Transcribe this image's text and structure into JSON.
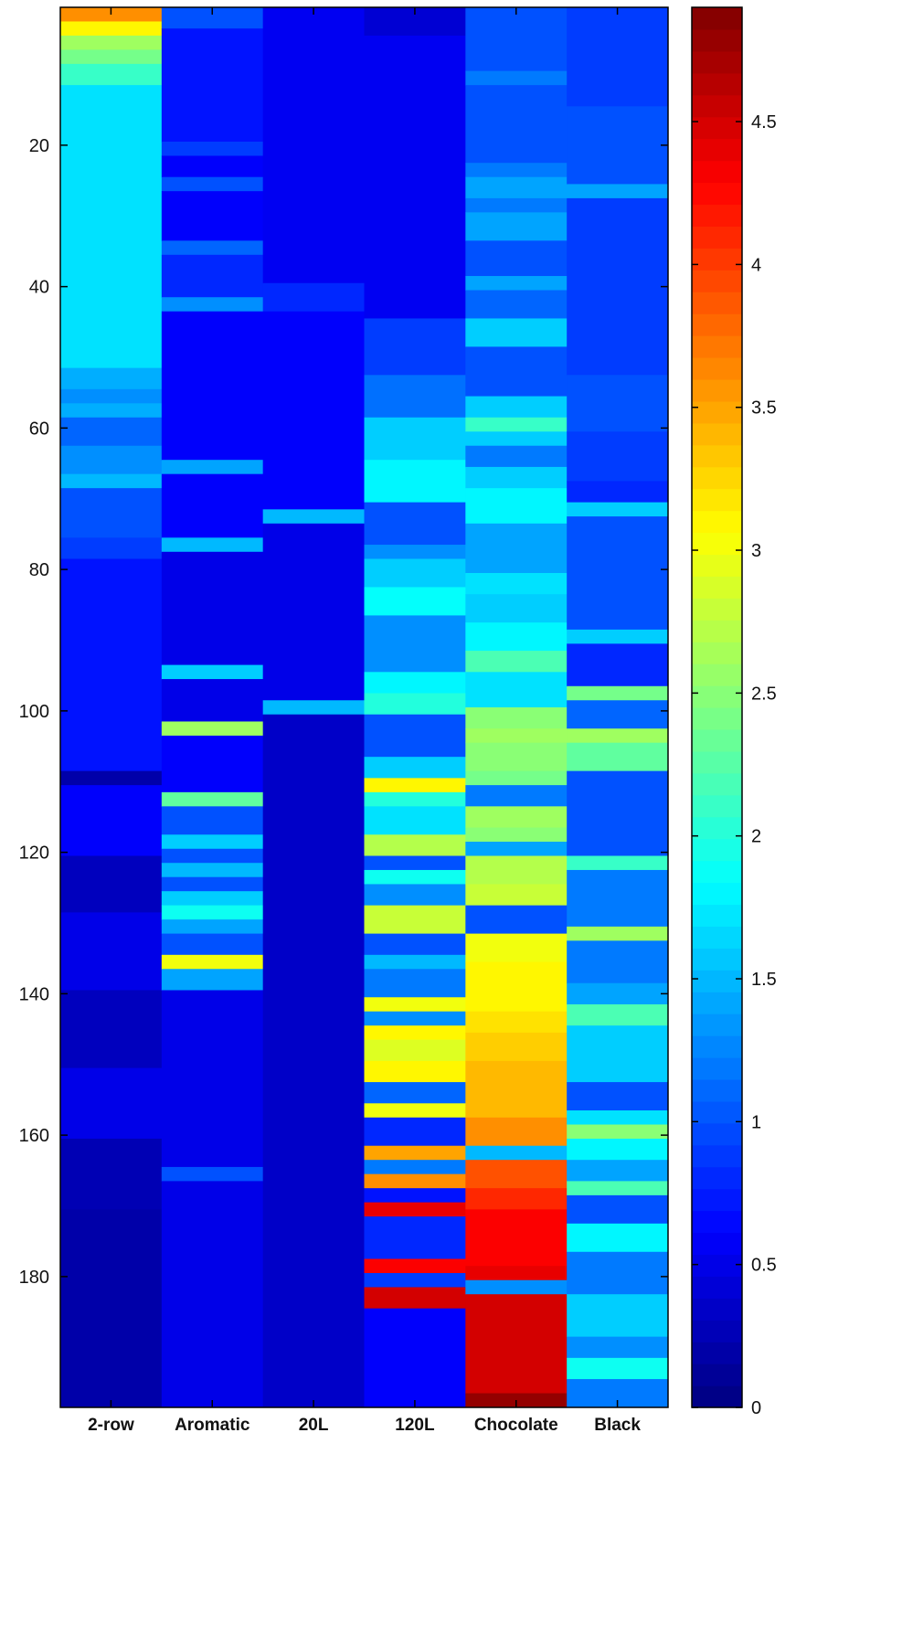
{
  "chart_data": {
    "type": "heatmap",
    "title": "",
    "xlabel": "",
    "ylabel": "",
    "columns": [
      "2-row",
      "Aromatic",
      "20L",
      "120L",
      "Chocolate",
      "Black"
    ],
    "yticks": [
      20,
      40,
      60,
      80,
      100,
      120,
      140,
      160,
      180
    ],
    "ylim": [
      0.5,
      198.5
    ],
    "rows": 198,
    "colorbar": {
      "ticks": [
        0,
        0.5,
        1,
        1.5,
        2,
        2.5,
        3,
        3.5,
        4,
        4.5
      ],
      "tick_labels": [
        "0",
        "0.5",
        "1",
        "1.5",
        "2",
        "2.5",
        "3",
        "3.5",
        "4",
        "4.5"
      ],
      "range": [
        0,
        4.9
      ],
      "colormap": "jet"
    },
    "series": [
      {
        "name": "2-row",
        "segments": [
          [
            1,
            2,
            3.6
          ],
          [
            3,
            4,
            3.1
          ],
          [
            5,
            6,
            2.6
          ],
          [
            7,
            8,
            2.4
          ],
          [
            9,
            11,
            2.1
          ],
          [
            12,
            51,
            1.7
          ],
          [
            52,
            54,
            1.45
          ],
          [
            55,
            56,
            1.3
          ],
          [
            57,
            58,
            1.45
          ],
          [
            59,
            62,
            1.1
          ],
          [
            63,
            66,
            1.3
          ],
          [
            67,
            68,
            1.5
          ],
          [
            69,
            75,
            1.0
          ],
          [
            76,
            78,
            0.9
          ],
          [
            79,
            108,
            0.7
          ],
          [
            109,
            110,
            0.2
          ],
          [
            111,
            120,
            0.6
          ],
          [
            121,
            128,
            0.3
          ],
          [
            129,
            139,
            0.5
          ],
          [
            140,
            150,
            0.3
          ],
          [
            151,
            160,
            0.5
          ],
          [
            161,
            170,
            0.25
          ],
          [
            171,
            198,
            0.2
          ]
        ]
      },
      {
        "name": "Aromatic",
        "segments": [
          [
            1,
            3,
            1.0
          ],
          [
            4,
            19,
            0.7
          ],
          [
            20,
            21,
            0.9
          ],
          [
            22,
            24,
            0.6
          ],
          [
            25,
            26,
            1.0
          ],
          [
            27,
            33,
            0.6
          ],
          [
            34,
            35,
            1.1
          ],
          [
            36,
            41,
            0.8
          ],
          [
            42,
            43,
            1.3
          ],
          [
            44,
            64,
            0.6
          ],
          [
            65,
            66,
            1.4
          ],
          [
            67,
            75,
            0.6
          ],
          [
            76,
            77,
            1.5
          ],
          [
            78,
            93,
            0.5
          ],
          [
            94,
            95,
            1.6
          ],
          [
            96,
            101,
            0.5
          ],
          [
            102,
            103,
            2.6
          ],
          [
            104,
            111,
            0.6
          ],
          [
            112,
            113,
            2.3
          ],
          [
            114,
            117,
            1.0
          ],
          [
            118,
            119,
            1.6
          ],
          [
            120,
            121,
            1.0
          ],
          [
            122,
            123,
            1.5
          ],
          [
            124,
            125,
            1.0
          ],
          [
            126,
            127,
            1.6
          ],
          [
            128,
            129,
            1.9
          ],
          [
            130,
            131,
            1.4
          ],
          [
            132,
            134,
            1.0
          ],
          [
            135,
            136,
            3.0
          ],
          [
            137,
            139,
            1.4
          ],
          [
            140,
            164,
            0.5
          ],
          [
            165,
            166,
            1.0
          ],
          [
            167,
            198,
            0.5
          ]
        ]
      },
      {
        "name": "20L",
        "segments": [
          [
            1,
            39,
            0.55
          ],
          [
            40,
            43,
            0.8
          ],
          [
            44,
            71,
            0.6
          ],
          [
            72,
            73,
            1.5
          ],
          [
            74,
            98,
            0.5
          ],
          [
            99,
            100,
            1.5
          ],
          [
            101,
            198,
            0.35
          ]
        ]
      },
      {
        "name": "120L",
        "segments": [
          [
            1,
            4,
            0.4
          ],
          [
            5,
            44,
            0.55
          ],
          [
            45,
            52,
            0.9
          ],
          [
            53,
            58,
            1.15
          ],
          [
            59,
            64,
            1.6
          ],
          [
            65,
            70,
            1.8
          ],
          [
            71,
            76,
            1.0
          ],
          [
            77,
            78,
            1.3
          ],
          [
            79,
            82,
            1.6
          ],
          [
            83,
            86,
            1.85
          ],
          [
            87,
            94,
            1.3
          ],
          [
            95,
            97,
            1.8
          ],
          [
            98,
            100,
            2.0
          ],
          [
            101,
            106,
            1.0
          ],
          [
            107,
            109,
            1.6
          ],
          [
            110,
            111,
            3.1
          ],
          [
            112,
            113,
            2.0
          ],
          [
            114,
            117,
            1.7
          ],
          [
            118,
            120,
            2.7
          ],
          [
            121,
            122,
            1.0
          ],
          [
            123,
            124,
            1.9
          ],
          [
            125,
            127,
            1.3
          ],
          [
            128,
            131,
            2.8
          ],
          [
            132,
            134,
            1.0
          ],
          [
            135,
            136,
            1.5
          ],
          [
            137,
            140,
            1.2
          ],
          [
            141,
            142,
            3.0
          ],
          [
            143,
            144,
            1.3
          ],
          [
            145,
            146,
            3.1
          ],
          [
            147,
            149,
            2.9
          ],
          [
            150,
            152,
            3.1
          ],
          [
            153,
            155,
            1.1
          ],
          [
            156,
            157,
            3.0
          ],
          [
            158,
            161,
            0.8
          ],
          [
            162,
            163,
            3.5
          ],
          [
            164,
            165,
            1.2
          ],
          [
            166,
            167,
            3.6
          ],
          [
            168,
            169,
            0.7
          ],
          [
            170,
            171,
            4.4
          ],
          [
            172,
            177,
            0.8
          ],
          [
            178,
            179,
            4.3
          ],
          [
            180,
            181,
            0.9
          ],
          [
            182,
            184,
            4.5
          ],
          [
            185,
            198,
            0.6
          ]
        ]
      },
      {
        "name": "Chocolate",
        "segments": [
          [
            1,
            9,
            1.0
          ],
          [
            10,
            11,
            1.2
          ],
          [
            12,
            22,
            1.0
          ],
          [
            23,
            24,
            1.2
          ],
          [
            25,
            27,
            1.4
          ],
          [
            28,
            29,
            1.2
          ],
          [
            30,
            33,
            1.4
          ],
          [
            34,
            38,
            1.0
          ],
          [
            39,
            40,
            1.4
          ],
          [
            41,
            44,
            1.1
          ],
          [
            45,
            48,
            1.6
          ],
          [
            49,
            55,
            1.0
          ],
          [
            56,
            58,
            1.6
          ],
          [
            59,
            60,
            2.1
          ],
          [
            61,
            62,
            1.6
          ],
          [
            63,
            65,
            1.2
          ],
          [
            66,
            68,
            1.6
          ],
          [
            69,
            73,
            1.8
          ],
          [
            74,
            80,
            1.4
          ],
          [
            81,
            83,
            1.7
          ],
          [
            84,
            87,
            1.6
          ],
          [
            88,
            91,
            1.8
          ],
          [
            92,
            94,
            2.2
          ],
          [
            95,
            99,
            1.7
          ],
          [
            100,
            102,
            2.5
          ],
          [
            103,
            104,
            2.6
          ],
          [
            105,
            108,
            2.5
          ],
          [
            109,
            110,
            2.4
          ],
          [
            111,
            113,
            1.2
          ],
          [
            114,
            116,
            2.6
          ],
          [
            117,
            118,
            2.5
          ],
          [
            119,
            120,
            1.4
          ],
          [
            121,
            124,
            2.7
          ],
          [
            125,
            127,
            2.8
          ],
          [
            128,
            131,
            1.0
          ],
          [
            132,
            135,
            3.0
          ],
          [
            136,
            142,
            3.1
          ],
          [
            143,
            145,
            3.2
          ],
          [
            146,
            149,
            3.3
          ],
          [
            150,
            152,
            3.4
          ],
          [
            153,
            157,
            3.4
          ],
          [
            158,
            161,
            3.6
          ],
          [
            162,
            163,
            1.5
          ],
          [
            164,
            167,
            3.9
          ],
          [
            168,
            170,
            4.1
          ],
          [
            171,
            178,
            4.3
          ],
          [
            179,
            180,
            4.4
          ],
          [
            181,
            182,
            1.3
          ],
          [
            183,
            196,
            4.5
          ],
          [
            197,
            198,
            4.8
          ]
        ]
      },
      {
        "name": "Black",
        "segments": [
          [
            1,
            14,
            0.9
          ],
          [
            15,
            25,
            1.0
          ],
          [
            26,
            27,
            1.4
          ],
          [
            28,
            52,
            0.9
          ],
          [
            53,
            60,
            1.0
          ],
          [
            61,
            67,
            0.9
          ],
          [
            68,
            70,
            0.8
          ],
          [
            71,
            72,
            1.6
          ],
          [
            73,
            88,
            1.0
          ],
          [
            89,
            90,
            1.6
          ],
          [
            91,
            96,
            0.8
          ],
          [
            97,
            98,
            2.4
          ],
          [
            99,
            102,
            1.1
          ],
          [
            103,
            104,
            2.6
          ],
          [
            105,
            108,
            2.3
          ],
          [
            109,
            120,
            1.0
          ],
          [
            121,
            122,
            2.1
          ],
          [
            123,
            130,
            1.2
          ],
          [
            131,
            132,
            2.6
          ],
          [
            133,
            138,
            1.2
          ],
          [
            139,
            141,
            1.4
          ],
          [
            142,
            144,
            2.2
          ],
          [
            145,
            152,
            1.6
          ],
          [
            153,
            156,
            1.0
          ],
          [
            157,
            158,
            1.7
          ],
          [
            159,
            160,
            2.5
          ],
          [
            161,
            163,
            1.8
          ],
          [
            164,
            166,
            1.4
          ],
          [
            167,
            168,
            2.2
          ],
          [
            169,
            172,
            1.0
          ],
          [
            173,
            176,
            1.8
          ],
          [
            177,
            182,
            1.2
          ],
          [
            183,
            188,
            1.6
          ],
          [
            189,
            191,
            1.3
          ],
          [
            192,
            194,
            1.9
          ],
          [
            195,
            198,
            1.2
          ]
        ]
      }
    ]
  }
}
